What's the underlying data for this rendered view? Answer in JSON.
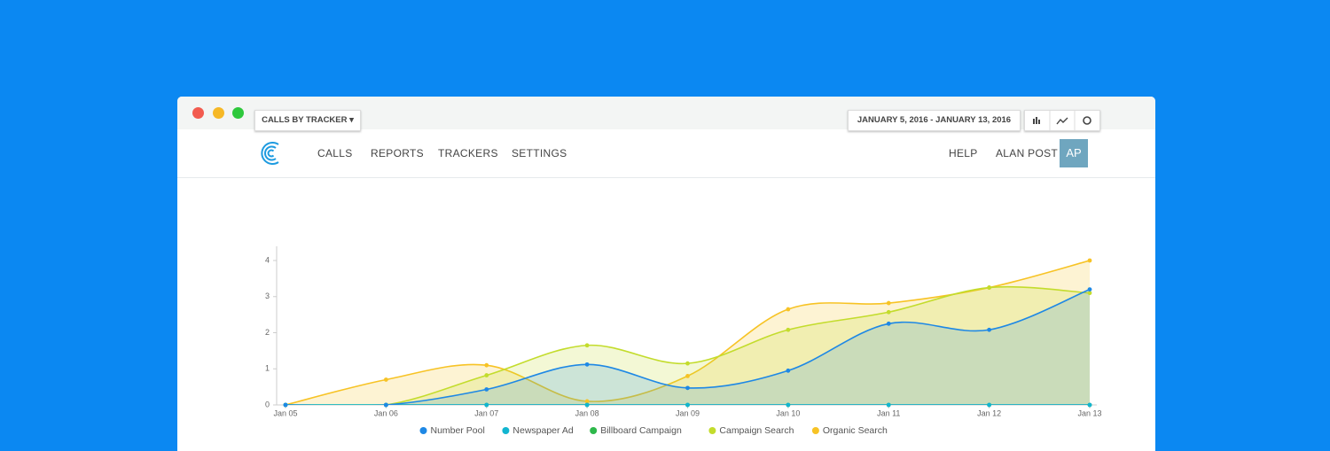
{
  "nav": {
    "items": [
      "CALLS",
      "REPORTS",
      "TRACKERS",
      "SETTINGS"
    ],
    "help": "HELP",
    "user": "ALAN POST",
    "avatar": "AP"
  },
  "toolbar": {
    "dropdown": "CALLS BY TRACKER",
    "date_range": "JANUARY 5, 2016 - JANUARY 13, 2016"
  },
  "chart_data": {
    "type": "area",
    "categories": [
      "Jan 05",
      "Jan 06",
      "Jan 07",
      "Jan 08",
      "Jan 09",
      "Jan 10",
      "Jan 11",
      "Jan 12",
      "Jan 13"
    ],
    "series": [
      {
        "name": "Number Pool",
        "color": "#1e88e5",
        "values": [
          0,
          0,
          0.43,
          1.12,
          0.47,
          0.95,
          2.25,
          2.08,
          3.2
        ]
      },
      {
        "name": "Newspaper Ad",
        "color": "#12b5d0",
        "values": [
          0,
          0,
          0,
          0,
          0,
          0,
          0,
          0,
          0
        ]
      },
      {
        "name": "Billboard Campaign",
        "color": "#2eb84b",
        "values": [
          0,
          0,
          0,
          0,
          0,
          0,
          0,
          0,
          0
        ]
      },
      {
        "name": "Campaign Search",
        "color": "#c3dc2c",
        "values": [
          0,
          0,
          0.82,
          1.65,
          1.15,
          2.08,
          2.57,
          3.25,
          3.1
        ]
      },
      {
        "name": "Organic Search",
        "color": "#f7c325",
        "values": [
          0,
          0.7,
          1.1,
          0.1,
          0.8,
          2.65,
          2.82,
          3.25,
          4
        ]
      }
    ],
    "ylim": [
      0,
      4
    ],
    "yticks": [
      0,
      1,
      2,
      3,
      4
    ]
  }
}
